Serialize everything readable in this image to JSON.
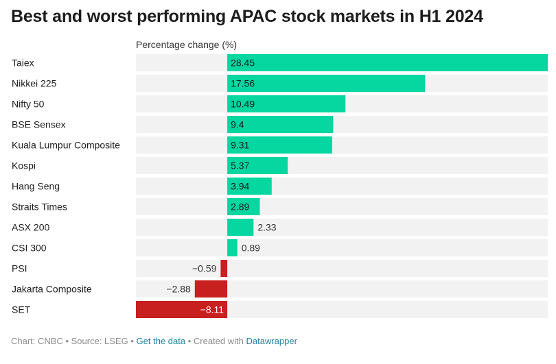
{
  "title": "Best and worst performing APAC stock markets in H1 2024",
  "axis_title": "Percentage change (%)",
  "colors": {
    "positive": "#06d6a0",
    "negative": "#c81f1f",
    "row_background": "#f2f2f2",
    "label_text": "#1d1d1d",
    "link": "#1d81a2"
  },
  "footer": {
    "chart_credit": "Chart: CNBC",
    "separator": " • ",
    "source": "Source: LSEG",
    "get_data_link": "Get the data",
    "created_with": "Created with",
    "datawrapper_link": "Datawrapper"
  },
  "chart_data": {
    "type": "bar",
    "orientation": "horizontal",
    "title": "Best and worst performing APAC stock markets in H1 2024",
    "xlabel": "Percentage change (%)",
    "ylabel": "",
    "xlim": [
      -8.11,
      28.45
    ],
    "grid": false,
    "categories": [
      "Taiex",
      "Nikkei 225",
      "Nifty 50",
      "BSE Sensex",
      "Kuala Lumpur Composite",
      "Kospi",
      "Hang Seng",
      "Straits Times",
      "ASX 200",
      "CSI 300",
      "PSI",
      "Jakarta Composite",
      "SET"
    ],
    "values": [
      28.45,
      17.56,
      10.49,
      9.4,
      9.31,
      5.37,
      3.94,
      2.89,
      2.33,
      0.89,
      -0.59,
      -2.88,
      -8.11
    ],
    "value_labels": [
      "28.45",
      "17.56",
      "10.49",
      "9.4",
      "9.31",
      "5.37",
      "3.94",
      "2.89",
      "2.33",
      "0.89",
      "−0.59",
      "−2.88",
      "−8.11"
    ]
  }
}
